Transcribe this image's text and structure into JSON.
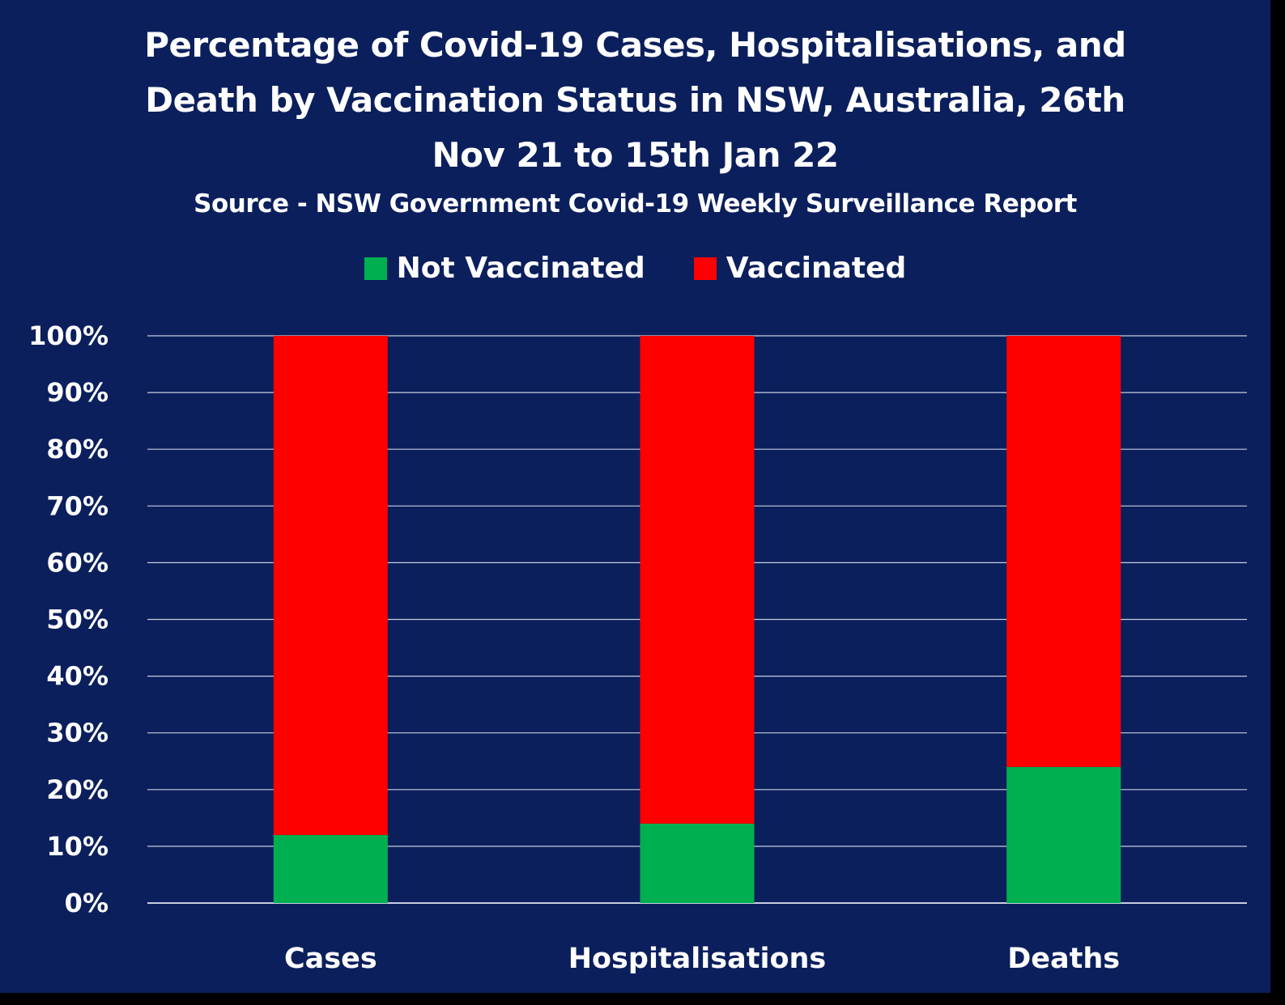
{
  "chart_data": {
    "type": "bar",
    "stacked": true,
    "title": "Percentage of Covid-19 Cases, Hospitalisations, and Death by Vaccination Status in NSW, Australia, 26th Nov 21 to 15th Jan 22",
    "title_lines": [
      "Percentage of Covid-19 Cases, Hospitalisations, and",
      "Death by Vaccination Status in NSW, Australia, 26th",
      "Nov 21 to 15th Jan 22"
    ],
    "subtitle": "Source - NSW Government Covid-19 Weekly Surveillance Report",
    "categories": [
      "Cases",
      "Hospitalisations",
      "Deaths"
    ],
    "series": [
      {
        "name": "Not Vaccinated",
        "color": "#00b050",
        "values": [
          12,
          14,
          24
        ]
      },
      {
        "name": "Vaccinated",
        "color": "#ff0000",
        "values": [
          88,
          86,
          76
        ]
      }
    ],
    "yticks": [
      "0%",
      "10%",
      "20%",
      "30%",
      "40%",
      "50%",
      "60%",
      "70%",
      "80%",
      "90%",
      "100%"
    ],
    "ylim": [
      0,
      100
    ],
    "grid": true,
    "legend_position": "top-center",
    "background_color": "#0b1f5c",
    "text_color": "#ffffff"
  }
}
